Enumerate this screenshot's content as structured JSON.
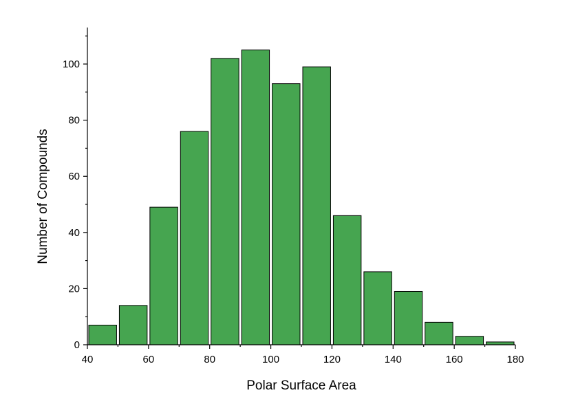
{
  "chart_data": {
    "type": "bar",
    "title": "",
    "xlabel": "Polar Surface Area",
    "ylabel": "Number of Compounds",
    "xlim": [
      40,
      180
    ],
    "ylim": [
      0,
      113
    ],
    "x_ticks": [
      40,
      60,
      80,
      100,
      120,
      140,
      160,
      180
    ],
    "y_ticks": [
      0,
      20,
      40,
      60,
      80,
      100
    ],
    "bin_width": 10,
    "bins": [
      {
        "start": 40,
        "end": 50,
        "value": 7
      },
      {
        "start": 50,
        "end": 60,
        "value": 14
      },
      {
        "start": 60,
        "end": 70,
        "value": 49
      },
      {
        "start": 70,
        "end": 80,
        "value": 76
      },
      {
        "start": 80,
        "end": 90,
        "value": 102
      },
      {
        "start": 90,
        "end": 100,
        "value": 105
      },
      {
        "start": 100,
        "end": 110,
        "value": 93
      },
      {
        "start": 110,
        "end": 120,
        "value": 99
      },
      {
        "start": 120,
        "end": 130,
        "value": 46
      },
      {
        "start": 130,
        "end": 140,
        "value": 26
      },
      {
        "start": 140,
        "end": 150,
        "value": 19
      },
      {
        "start": 150,
        "end": 160,
        "value": 8
      },
      {
        "start": 160,
        "end": 170,
        "value": 3
      },
      {
        "start": 170,
        "end": 180,
        "value": 1
      }
    ],
    "bar_color": "#46a550",
    "grid": false,
    "legend": "none"
  }
}
